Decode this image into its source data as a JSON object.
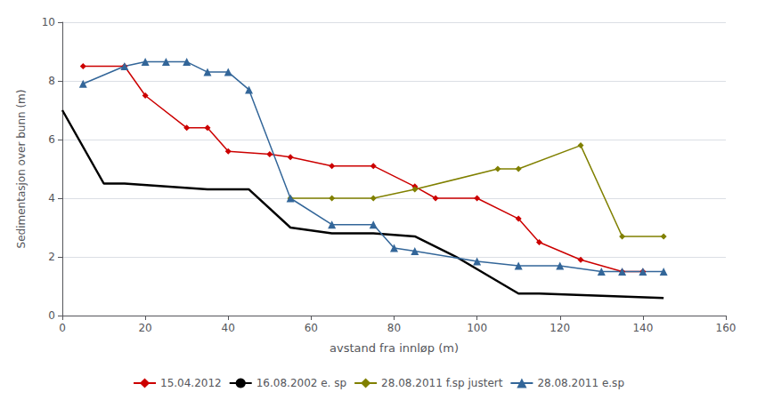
{
  "chart_data": {
    "type": "line",
    "xlabel": "avstand fra innløp (m)",
    "ylabel": "Sedimentasjon over bunn (m)",
    "xlim": [
      0,
      160
    ],
    "ylim": [
      0,
      10
    ],
    "xticks": [
      0,
      20,
      40,
      60,
      80,
      100,
      120,
      140,
      160
    ],
    "yticks": [
      0,
      2,
      4,
      6,
      8,
      10
    ],
    "grid": true,
    "legend": "bottom",
    "series": [
      {
        "name": "15.04.2012",
        "color": "#cc0000",
        "marker": "diamond",
        "x": [
          5,
          15,
          20,
          30,
          35,
          40,
          50,
          55,
          65,
          75,
          85,
          90,
          100,
          110,
          115,
          125,
          135,
          140
        ],
        "values": [
          8.5,
          8.5,
          7.5,
          6.4,
          6.4,
          5.6,
          5.5,
          5.4,
          5.1,
          5.1,
          4.4,
          4.0,
          4.0,
          3.3,
          2.5,
          1.9,
          1.5,
          1.5
        ]
      },
      {
        "name": "16.08.2002 e. sp",
        "color": "#000000",
        "marker": "none",
        "x": [
          0,
          10,
          15,
          35,
          45,
          55,
          65,
          75,
          85,
          95,
          110,
          115,
          145
        ],
        "values": [
          7.0,
          4.5,
          4.5,
          4.3,
          4.3,
          3.0,
          2.8,
          2.8,
          2.7,
          2.0,
          0.75,
          0.75,
          0.6
        ]
      },
      {
        "name": "28.08.2011 f.sp justert",
        "color": "#808000",
        "marker": "diamond",
        "x": [
          55,
          65,
          75,
          85,
          105,
          110,
          125,
          135,
          145
        ],
        "values": [
          4.0,
          4.0,
          4.0,
          4.3,
          5.0,
          5.0,
          5.8,
          2.7,
          2.7
        ]
      },
      {
        "name": "28.08.2011 e.sp",
        "color": "#336699",
        "marker": "triangle",
        "x": [
          5,
          15,
          20,
          25,
          30,
          35,
          40,
          45,
          55,
          65,
          75,
          80,
          85,
          100,
          110,
          120,
          130,
          135,
          140,
          145
        ],
        "values": [
          7.9,
          8.5,
          8.65,
          8.65,
          8.65,
          8.3,
          8.3,
          7.7,
          4.0,
          3.1,
          3.1,
          2.3,
          2.2,
          1.85,
          1.7,
          1.7,
          1.5,
          1.5,
          1.5,
          1.5
        ]
      }
    ]
  }
}
